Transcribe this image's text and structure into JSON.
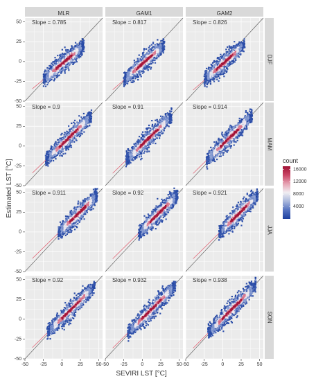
{
  "chart_data": {
    "type": "scatter",
    "subtype": "faceted-density-scatter",
    "xlabel": "SEVIRI LST [°C]",
    "ylabel": "Estimated LST [°C]",
    "xlim": [
      -50,
      55
    ],
    "ylim": [
      -50,
      55
    ],
    "x_ticks": [
      -50,
      -25,
      0,
      25,
      50
    ],
    "y_ticks": [
      -50,
      -25,
      0,
      25,
      50
    ],
    "x_tick_labels": [
      "-50",
      "-25",
      "0",
      "25",
      "50"
    ],
    "y_tick_labels": [
      "-50",
      "-25",
      "0",
      "25",
      "50"
    ],
    "grid": true,
    "reference_line": "1:1",
    "columns": [
      "MLR",
      "GAM1",
      "GAM2"
    ],
    "rows": [
      "DJF",
      "MAM",
      "JJA",
      "SON"
    ],
    "slope_label": "Slope  = ",
    "slopes": [
      [
        "0.785",
        "0.817",
        "0.826"
      ],
      [
        "0.9",
        "0.91",
        "0.914"
      ],
      [
        "0.911",
        "0.92",
        "0.921"
      ],
      [
        "0.92",
        "0.932",
        "0.938"
      ]
    ],
    "slope_values": [
      [
        0.785,
        0.817,
        0.826
      ],
      [
        0.9,
        0.91,
        0.914
      ],
      [
        0.911,
        0.92,
        0.921
      ],
      [
        0.92,
        0.932,
        0.938
      ]
    ],
    "cloud_ranges": [
      {
        "x": [
          -25,
          30
        ],
        "intercept": -3
      },
      {
        "x": [
          -22,
          40
        ],
        "intercept": 2
      },
      {
        "x": [
          -5,
          48
        ],
        "intercept": 3
      },
      {
        "x": [
          -20,
          45
        ],
        "intercept": 1
      }
    ],
    "legend": {
      "title": "count",
      "position": "right",
      "ticks": [
        4000,
        8000,
        12000,
        16000
      ],
      "tick_labels": [
        "4000",
        "8000",
        "12000",
        "16000"
      ],
      "range": [
        0,
        17000
      ],
      "colors": [
        "#1c3f9e",
        "#5472c0",
        "#a9b7dc",
        "#f1eef2",
        "#e6a3b3",
        "#c94464",
        "#a01235"
      ]
    }
  }
}
